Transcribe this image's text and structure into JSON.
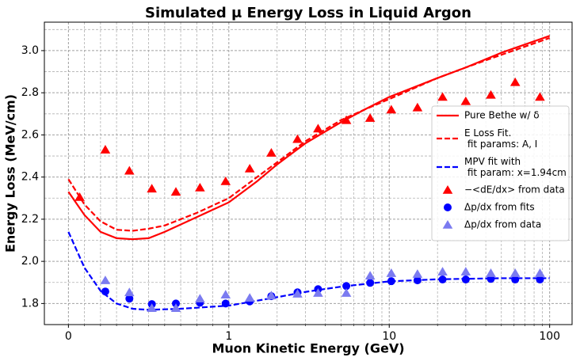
{
  "chart_data": {
    "type": "line",
    "title": "Simulated μ Energy Loss in Liquid Argon",
    "xlabel": "Muon Kinetic Energy (GeV)",
    "ylabel": "Energy Loss (MeV/cm)",
    "xscale": "symlog",
    "linthresh": 1,
    "xlim": [
      -0.15,
      138
    ],
    "ylim": [
      1.7,
      3.135
    ],
    "xticks": [
      0,
      1,
      10,
      100
    ],
    "xminorticks": [
      0.1,
      0.2,
      0.3,
      0.4,
      0.5,
      0.6,
      0.7,
      0.8,
      0.9,
      2,
      3,
      4,
      5,
      6,
      7,
      8,
      9,
      20,
      30,
      40,
      50,
      60,
      70,
      80,
      90
    ],
    "yticks": [
      {
        "value": 1.8,
        "label": "1.8"
      },
      {
        "value": 2.0,
        "label": "2.0"
      },
      {
        "value": 2.2,
        "label": "2.2"
      },
      {
        "value": 2.4,
        "label": "2.4"
      },
      {
        "value": 2.6,
        "label": "2.6"
      },
      {
        "value": 2.8,
        "label": "2.8"
      },
      {
        "value": 3.0,
        "label": "3.0"
      }
    ],
    "yminorticks": [
      1.7,
      1.9,
      2.1,
      2.3,
      2.5,
      2.7,
      2.9,
      3.1
    ],
    "grid": true,
    "legend": "center right",
    "series": [
      {
        "name": "Pure Bethe w/ δ",
        "color": "#ff0000",
        "style": "solid",
        "x": [
          0,
          0.1,
          0.2,
          0.3,
          0.4,
          0.5,
          0.6,
          0.8,
          1,
          1.5,
          2,
          3,
          5,
          7,
          10,
          20,
          30,
          50,
          100
        ],
        "values": [
          2.33,
          2.22,
          2.14,
          2.11,
          2.105,
          2.11,
          2.14,
          2.21,
          2.28,
          2.38,
          2.46,
          2.56,
          2.66,
          2.72,
          2.78,
          2.87,
          2.92,
          2.99,
          3.07
        ]
      },
      {
        "name": "E Loss Fit.\n fit params: A, I",
        "color": "#ff0000",
        "style": "dashed",
        "x": [
          0,
          0.1,
          0.2,
          0.3,
          0.4,
          0.5,
          0.6,
          0.8,
          1,
          1.5,
          2,
          3,
          5,
          7,
          10,
          20,
          30,
          50,
          100
        ],
        "values": [
          2.39,
          2.27,
          2.19,
          2.15,
          2.145,
          2.155,
          2.17,
          2.23,
          2.3,
          2.4,
          2.47,
          2.57,
          2.67,
          2.72,
          2.77,
          2.87,
          2.92,
          2.98,
          3.06
        ]
      },
      {
        "name": "MPV fit with\n fit param: x=1.94cm",
        "color": "#0000ff",
        "style": "dashed",
        "x": [
          0,
          0.1,
          0.2,
          0.3,
          0.4,
          0.5,
          0.7,
          1,
          2,
          3,
          5,
          10,
          20,
          50,
          100
        ],
        "values": [
          2.14,
          1.97,
          1.86,
          1.8,
          1.775,
          1.77,
          1.775,
          1.79,
          1.83,
          1.855,
          1.88,
          1.905,
          1.915,
          1.92,
          1.92
        ]
      },
      {
        "name": "−<dE/dx> from data",
        "color": "#ff0000",
        "style": "triangle",
        "x": [
          0.07,
          0.23,
          0.38,
          0.52,
          0.67,
          0.82,
          0.98,
          1.35,
          1.84,
          2.68,
          3.6,
          5.4,
          7.6,
          10.3,
          15,
          21.5,
          30,
          43,
          61,
          87
        ],
        "values": [
          2.305,
          2.53,
          2.43,
          2.345,
          2.33,
          2.35,
          2.38,
          2.44,
          2.515,
          2.58,
          2.63,
          2.67,
          2.68,
          2.72,
          2.73,
          2.78,
          2.76,
          2.79,
          2.85,
          2.78
        ]
      },
      {
        "name": "Δp/dx from fits",
        "color": "#0000ff",
        "style": "circle",
        "x": [
          0.23,
          0.38,
          0.52,
          0.67,
          0.82,
          0.98,
          1.35,
          1.84,
          2.68,
          3.6,
          5.4,
          7.6,
          10.3,
          15,
          21.5,
          30,
          43,
          61,
          87
        ],
        "values": [
          1.857,
          1.823,
          1.797,
          1.8,
          1.804,
          1.8,
          1.81,
          1.835,
          1.853,
          1.868,
          1.883,
          1.898,
          1.906,
          1.91,
          1.914,
          1.914,
          1.917,
          1.914,
          1.914
        ]
      },
      {
        "name": "Δp/dx from data",
        "color": "#7b7bf0",
        "style": "triangle",
        "x": [
          0.23,
          0.38,
          0.52,
          0.67,
          0.82,
          0.98,
          1.35,
          1.84,
          2.68,
          3.6,
          5.4,
          7.6,
          10.3,
          15,
          21.5,
          30,
          43,
          61,
          87
        ],
        "values": [
          1.91,
          1.853,
          1.778,
          1.778,
          1.823,
          1.842,
          1.827,
          1.838,
          1.846,
          1.85,
          1.85,
          1.932,
          1.944,
          1.94,
          1.951,
          1.951,
          1.944,
          1.944,
          1.944
        ]
      }
    ]
  }
}
